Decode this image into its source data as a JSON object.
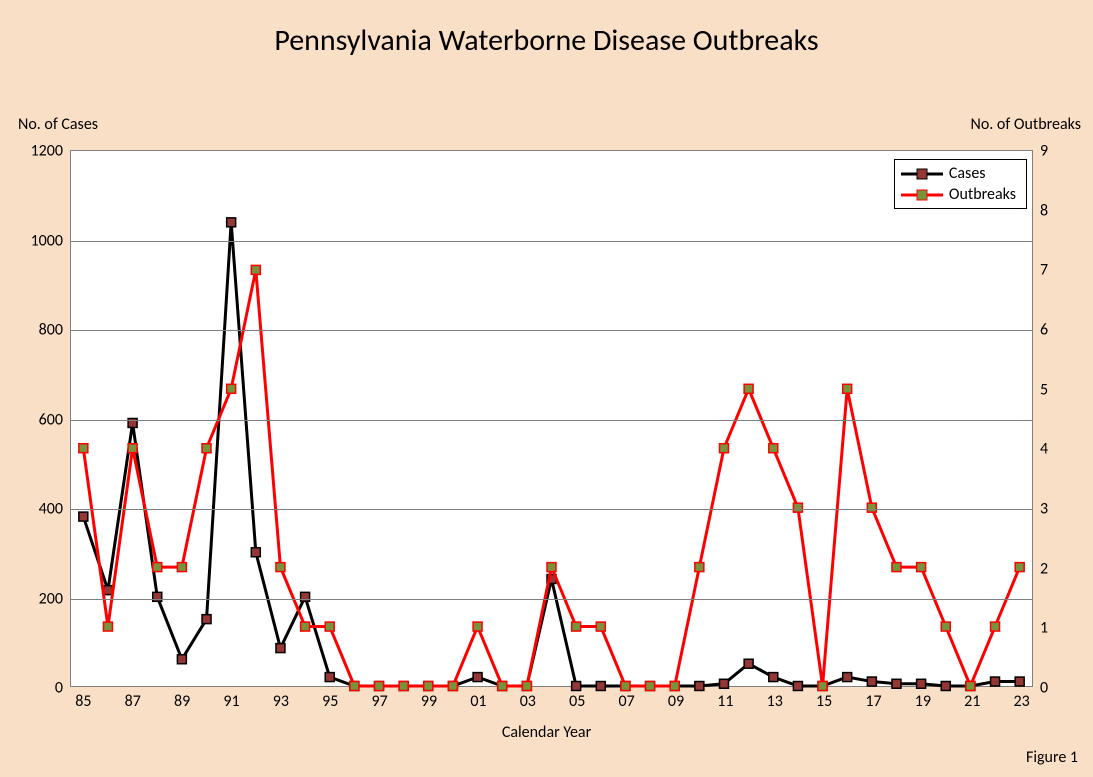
{
  "chart": {
    "type": "line",
    "title": "Pennsylvania Waterborne Disease Outbreaks",
    "title_fontsize": 30,
    "xlabel": "Calendar Year",
    "ylabel_left": "No. of Cases",
    "ylabel_right": "No. of Outbreaks",
    "figure_label": "Figure 1",
    "label_fontsize": 16,
    "background_color": "#fadfc7",
    "plot_background_color": "#ffffff",
    "grid_color": "#808080",
    "axis_color": "#808080",
    "years": [
      85,
      86,
      87,
      88,
      89,
      90,
      91,
      92,
      93,
      94,
      95,
      96,
      97,
      98,
      99,
      0,
      1,
      2,
      3,
      4,
      5,
      6,
      7,
      8,
      9,
      10,
      11,
      12,
      13,
      14,
      15,
      16,
      17,
      18,
      19,
      20,
      21,
      22,
      23
    ],
    "xtick_labels": [
      "85",
      " ",
      "87",
      " ",
      "89",
      " ",
      "91",
      " ",
      "93",
      " ",
      "95",
      " ",
      "97",
      " ",
      "99",
      " ",
      "01",
      " ",
      "03",
      " ",
      "05",
      " ",
      "07",
      " ",
      "09",
      " ",
      "11",
      " ",
      "13",
      " ",
      "15",
      " ",
      "17",
      " ",
      "19",
      " ",
      "21",
      " ",
      "23"
    ],
    "y_left": {
      "min": 0,
      "max": 1200,
      "step": 200,
      "ticks": [
        0,
        200,
        400,
        600,
        800,
        1000,
        1200
      ]
    },
    "y_right": {
      "min": 0,
      "max": 9,
      "step": 1,
      "ticks": [
        0,
        1,
        2,
        3,
        4,
        5,
        6,
        7,
        8,
        9
      ]
    },
    "series": [
      {
        "name": "Cases",
        "axis": "left",
        "color": "#000000",
        "marker_fill": "#953735",
        "marker_border": "#000000",
        "line_width": 3,
        "marker_size": 9,
        "values": [
          380,
          215,
          590,
          200,
          60,
          150,
          1040,
          300,
          85,
          200,
          20,
          0,
          0,
          0,
          0,
          0,
          20,
          0,
          0,
          240,
          0,
          0,
          0,
          0,
          0,
          0,
          5,
          50,
          20,
          0,
          0,
          20,
          10,
          5,
          5,
          0,
          0,
          10,
          10
        ]
      },
      {
        "name": "Outbreaks",
        "axis": "right",
        "color": "#ff0000",
        "marker_fill": "#77933c",
        "marker_border": "#ff0000",
        "line_width": 3,
        "marker_size": 9,
        "values": [
          4,
          1,
          4,
          2,
          2,
          4,
          5,
          7,
          2,
          1,
          1,
          0,
          0,
          0,
          0,
          0,
          1,
          0,
          0,
          2,
          1,
          1,
          0,
          0,
          0,
          2,
          4,
          5,
          4,
          3,
          0,
          5,
          3,
          2,
          2,
          1,
          0,
          1,
          2
        ]
      }
    ],
    "legend": {
      "position": "top-right",
      "items": [
        "Cases",
        "Outbreaks"
      ]
    }
  }
}
